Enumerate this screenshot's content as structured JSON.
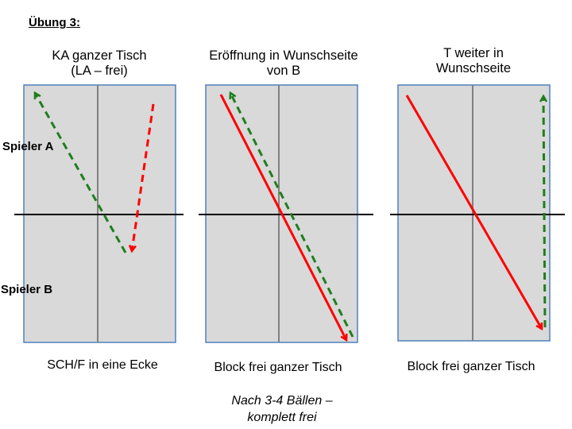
{
  "exercise_title": "Übung 3:",
  "panels": [
    {
      "heading_lines": [
        "KA ganzer Tisch",
        "(LA – frei)"
      ],
      "footer": "SCH/F in eine Ecke"
    },
    {
      "heading_lines": [
        "Eröffnung in Wunschseite",
        "von B"
      ],
      "footer": "Block frei ganzer Tisch"
    },
    {
      "heading_lines": [
        "T weiter in",
        "Wunschseite"
      ],
      "footer": "Block frei ganzer Tisch"
    }
  ],
  "players": {
    "a": "Spieler A",
    "b": "Spieler B"
  },
  "note_lines": [
    "Nach 3-4 Bällen –",
    "komplett frei"
  ],
  "colors": {
    "table_fill": "#d9d9d9",
    "table_border": "#4f81bd",
    "center_line": "#808080",
    "net": "#000000",
    "red_arrow": "#ff0000",
    "green_arrow": "#1e7e1e"
  }
}
